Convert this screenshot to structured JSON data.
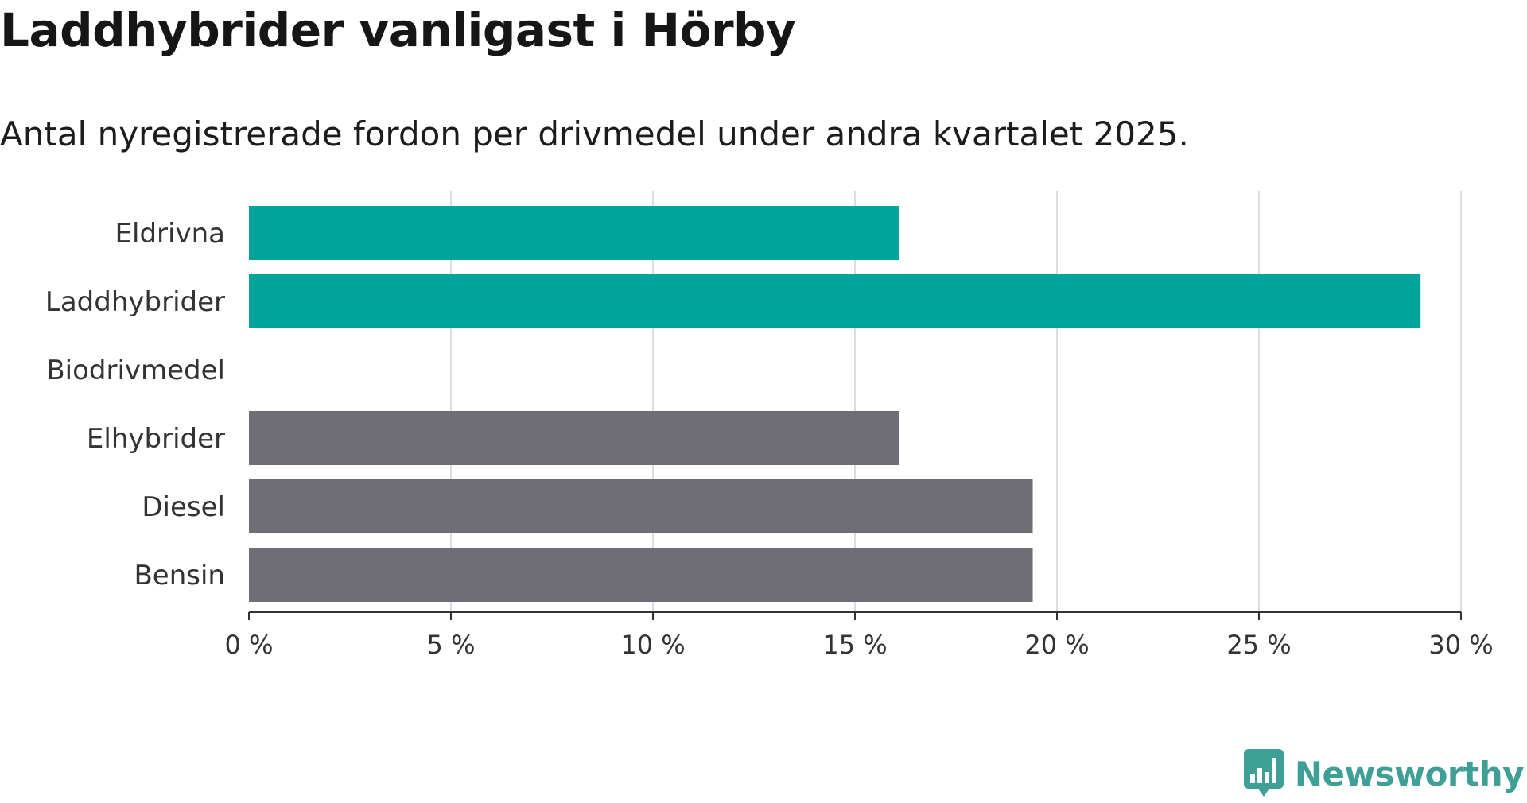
{
  "header": {
    "title": "Laddhybrider vanligast i Hörby",
    "subtitle": "Antal nyregistrerade fordon per drivmedel under andra kvartalet 2025."
  },
  "brand": {
    "name": "Newsworthy",
    "color": "#3d9f95"
  },
  "colors": {
    "highlight": "#00a49a",
    "other": "#6f6e76",
    "grid": "#dcdcdc",
    "axis": "#333333"
  },
  "chart_data": {
    "type": "bar",
    "orientation": "horizontal",
    "categories": [
      "Eldrivna",
      "Laddhybrider",
      "Biodrivmedel",
      "Elhybrider",
      "Diesel",
      "Bensin"
    ],
    "values": [
      16.1,
      29.0,
      0,
      16.1,
      19.4,
      19.4
    ],
    "highlighted": [
      true,
      true,
      false,
      false,
      false,
      false
    ],
    "xlim": [
      0,
      30
    ],
    "x_ticks": [
      0,
      5,
      10,
      15,
      20,
      25,
      30
    ],
    "x_tick_labels": [
      "0 %",
      "5 %",
      "10 %",
      "15 %",
      "20 %",
      "25 %",
      "30 %"
    ],
    "grid": true,
    "title": "Laddhybrider vanligast i Hörby",
    "xlabel": "",
    "ylabel": ""
  }
}
